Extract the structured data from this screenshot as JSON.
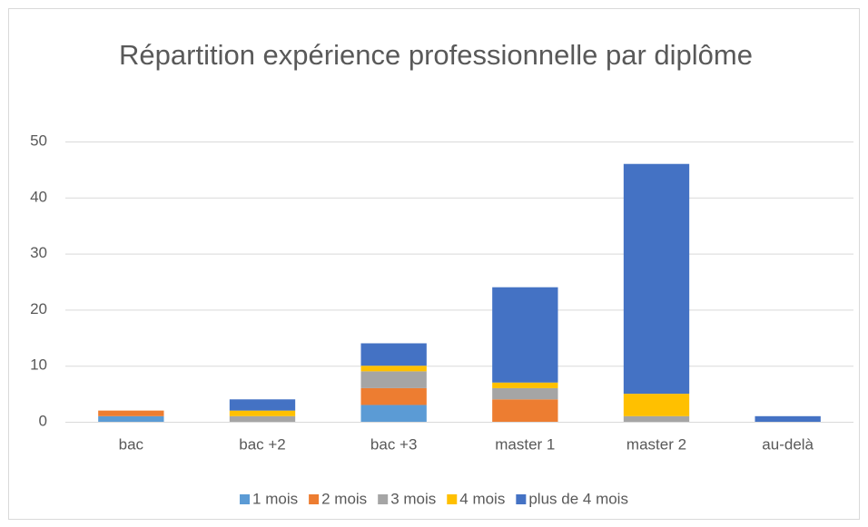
{
  "chart_data": {
    "type": "stacked_bar",
    "title": "Répartition expérience professionnelle par diplôme",
    "categories": [
      "bac",
      "bac +2",
      "bac +3",
      "master 1",
      "master 2",
      "au-delà"
    ],
    "series": [
      {
        "name": "1 mois",
        "color": "#5b9bd5",
        "values": [
          1,
          0,
          3,
          0,
          0,
          0
        ]
      },
      {
        "name": "2 mois",
        "color": "#ed7d31",
        "values": [
          1,
          0,
          3,
          4,
          0,
          0
        ]
      },
      {
        "name": "3 mois",
        "color": "#a5a5a5",
        "values": [
          0,
          1,
          3,
          2,
          1,
          0
        ]
      },
      {
        "name": "4 mois",
        "color": "#ffc000",
        "values": [
          0,
          1,
          1,
          1,
          4,
          0
        ]
      },
      {
        "name": "plus de 4 mois",
        "color": "#4472c4",
        "values": [
          0,
          2,
          4,
          17,
          41,
          1
        ]
      }
    ],
    "ylim": [
      0,
      50
    ],
    "yticks": [
      0,
      10,
      20,
      30,
      40,
      50
    ],
    "grid": true,
    "legend": "bottom"
  }
}
